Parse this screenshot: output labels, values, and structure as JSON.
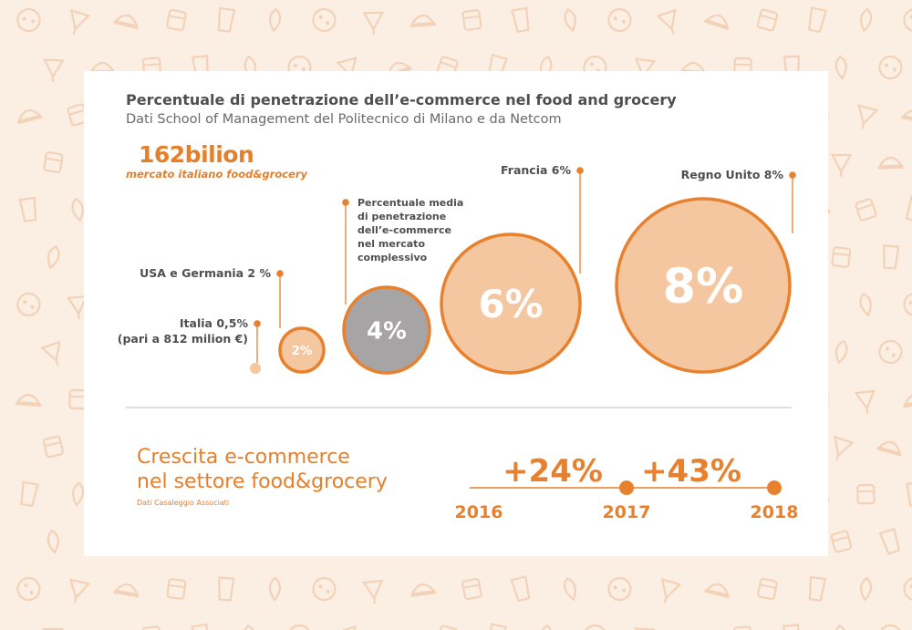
{
  "header": {
    "title": "Percentuale di penetrazione dell’e-commerce nel food and grocery",
    "subtitle": "Dati School of Management del Politecnico di Milano e da Netcom"
  },
  "market": {
    "value": "162bilion",
    "caption": "mercato italiano food&grocery"
  },
  "growth": {
    "title_lines": [
      "Crescita e-commerce",
      "nel settore food&grocery"
    ],
    "source": "Dati Casaleggio Associati"
  },
  "colors": {
    "accent": "#e8812e",
    "bubble_fill": "#f5c7a0",
    "average_fill": "#a6a4a4",
    "pattern": "#f3d2b8",
    "text_dark": "#4f4f4f"
  },
  "chart_data": [
    {
      "type": "bubble",
      "title": "Percentuale di penetrazione dell’e-commerce nel food and grocery",
      "items": [
        {
          "label_lines": [
            "Italia 0,5%",
            "(pari a 812 milion €)"
          ],
          "value": 0.5,
          "display": ""
        },
        {
          "label_lines": [
            "USA e Germania 2 %"
          ],
          "value": 2,
          "display": "2%"
        },
        {
          "label_lines": [
            "Percentuale media",
            "di penetrazione",
            "dell’e-commerce",
            "nel mercato",
            "complessivo"
          ],
          "value": 4,
          "display": "4%",
          "highlight": "average"
        },
        {
          "label_lines": [
            "Francia 6%"
          ],
          "value": 6,
          "display": "6%"
        },
        {
          "label_lines": [
            "Regno Unito 8%"
          ],
          "value": 8,
          "display": "8%"
        }
      ]
    },
    {
      "type": "timeline",
      "title": "Crescita e-commerce nel settore food&grocery",
      "years": [
        "2016",
        "2017",
        "2018"
      ],
      "growth": [
        {
          "from": "2016",
          "to": "2017",
          "label": "+24%",
          "value": 24
        },
        {
          "from": "2017",
          "to": "2018",
          "label": "+43%",
          "value": 43
        }
      ]
    }
  ]
}
